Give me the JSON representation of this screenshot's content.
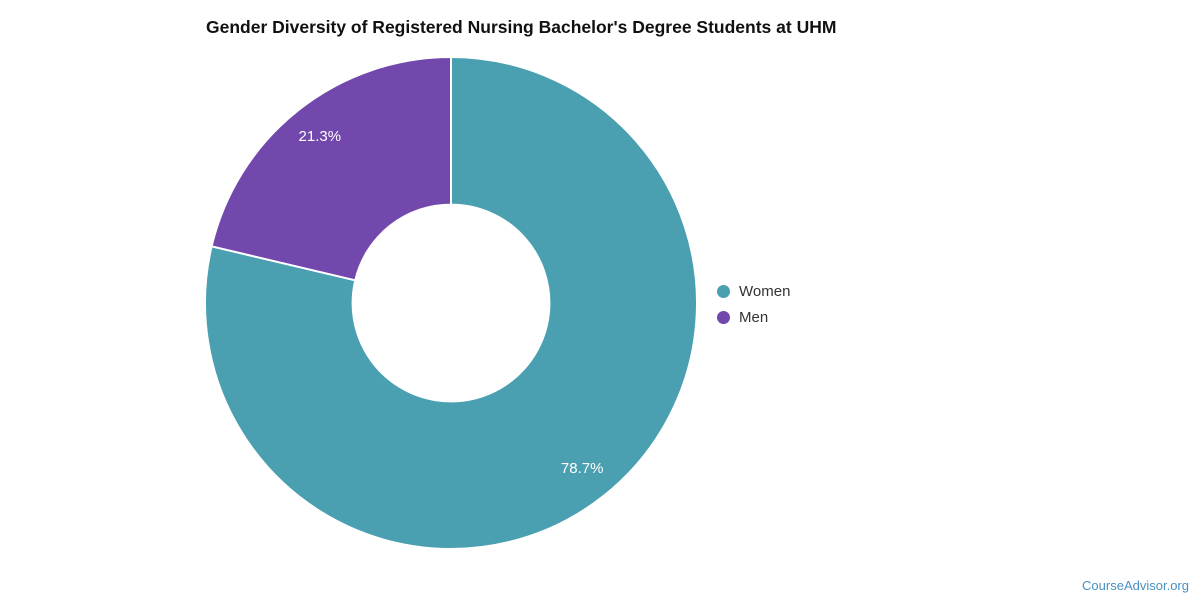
{
  "title": "Gender Diversity of Registered Nursing Bachelor's Degree Students at UHM",
  "attribution": {
    "text": "CourseAdvisor.org",
    "color": "#4a90c2"
  },
  "legend": {
    "items": [
      {
        "label": "Women",
        "color": "#4a9fb0"
      },
      {
        "label": "Men",
        "color": "#7348ac"
      }
    ]
  },
  "chart_data": {
    "type": "pie",
    "subtype": "donut",
    "title": "Gender Diversity of Registered Nursing Bachelor's Degree Students at UHM",
    "labels": [
      "Women",
      "Men"
    ],
    "values": [
      78.7,
      21.3
    ],
    "value_labels": [
      "78.7%",
      "21.3%"
    ],
    "colors": [
      "#4a9fb0",
      "#7348ac"
    ],
    "hole_ratio": 0.4,
    "outer_radius_px": 246,
    "start_angle_deg": 0,
    "direction": "clockwise",
    "slice_label_color": "#ffffff",
    "slice_border_color": "#ffffff",
    "legend_position": "right",
    "background": "#ffffff"
  }
}
